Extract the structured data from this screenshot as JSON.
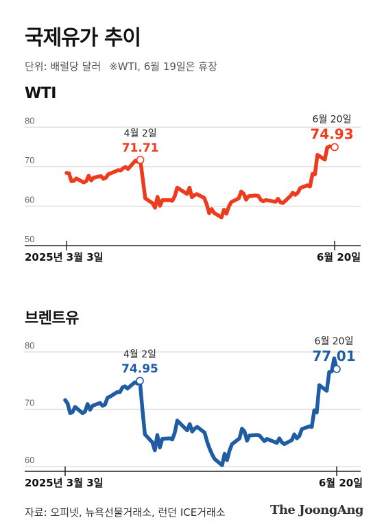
{
  "header": {
    "title": "국제유가 추이",
    "unit": "단위: 배럴당 달러",
    "note": "※WTI, 6월 19일은 휴장"
  },
  "footer": {
    "source": "자료: 오피넷, 뉴욕선물거래소, 런던 ICE거래소",
    "brand": "The JoongAng"
  },
  "colors": {
    "wti": "#ef3b1d",
    "brent": "#1f5ca3",
    "grid": "#cfcfcf",
    "axis": "#222222",
    "tick": "#666666"
  },
  "chart_data": [
    {
      "type": "line",
      "series_label": "WTI",
      "color": "#ef3b1d",
      "yticks": [
        50,
        60,
        70,
        80
      ],
      "ylim": [
        50,
        83
      ],
      "x_range": [
        "2025-03-03",
        "2025-06-20"
      ],
      "x_labels": {
        "start": "2025년 3월 3일",
        "end": "6월 20일"
      },
      "annotations": [
        {
          "date": "2025-04-02",
          "label": "4월 2일",
          "value": "71.71",
          "y": 71.71
        },
        {
          "date": "2025-06-20",
          "label": "6월 20일",
          "value": "74.93",
          "y": 74.93
        }
      ],
      "points": [
        [
          "2025-03-03",
          68.4
        ],
        [
          "2025-03-04",
          68.3
        ],
        [
          "2025-03-05",
          66.3
        ],
        [
          "2025-03-06",
          66.4
        ],
        [
          "2025-03-07",
          67.0
        ],
        [
          "2025-03-10",
          66.0
        ],
        [
          "2025-03-11",
          66.3
        ],
        [
          "2025-03-12",
          67.7
        ],
        [
          "2025-03-13",
          66.5
        ],
        [
          "2025-03-14",
          67.2
        ],
        [
          "2025-03-17",
          67.6
        ],
        [
          "2025-03-18",
          66.9
        ],
        [
          "2025-03-19",
          67.2
        ],
        [
          "2025-03-20",
          68.1
        ],
        [
          "2025-03-21",
          68.3
        ],
        [
          "2025-03-24",
          69.1
        ],
        [
          "2025-03-25",
          69.0
        ],
        [
          "2025-03-26",
          69.6
        ],
        [
          "2025-03-27",
          69.9
        ],
        [
          "2025-03-28",
          69.4
        ],
        [
          "2025-03-31",
          71.5
        ],
        [
          "2025-04-01",
          71.2
        ],
        [
          "2025-04-02",
          71.71
        ],
        [
          "2025-04-03",
          66.9
        ],
        [
          "2025-04-04",
          61.99
        ],
        [
          "2025-04-07",
          60.7
        ],
        [
          "2025-04-08",
          59.58
        ],
        [
          "2025-04-09",
          62.35
        ],
        [
          "2025-04-10",
          60.07
        ],
        [
          "2025-04-11",
          61.5
        ],
        [
          "2025-04-14",
          61.53
        ],
        [
          "2025-04-15",
          61.33
        ],
        [
          "2025-04-16",
          62.47
        ],
        [
          "2025-04-17",
          64.68
        ],
        [
          "2025-04-21",
          63.08
        ],
        [
          "2025-04-22",
          64.67
        ],
        [
          "2025-04-23",
          62.27
        ],
        [
          "2025-04-24",
          62.79
        ],
        [
          "2025-04-25",
          63.02
        ],
        [
          "2025-04-28",
          62.05
        ],
        [
          "2025-04-29",
          60.42
        ],
        [
          "2025-04-30",
          58.21
        ],
        [
          "2025-05-01",
          59.24
        ],
        [
          "2025-05-02",
          58.29
        ],
        [
          "2025-05-05",
          57.13
        ],
        [
          "2025-05-06",
          59.09
        ],
        [
          "2025-05-07",
          58.07
        ],
        [
          "2025-05-08",
          59.91
        ],
        [
          "2025-05-09",
          61.02
        ],
        [
          "2025-05-12",
          61.95
        ],
        [
          "2025-05-13",
          63.67
        ],
        [
          "2025-05-14",
          63.15
        ],
        [
          "2025-05-15",
          61.62
        ],
        [
          "2025-05-16",
          62.49
        ],
        [
          "2025-05-19",
          62.69
        ],
        [
          "2025-05-20",
          62.56
        ],
        [
          "2025-05-21",
          61.57
        ],
        [
          "2025-05-22",
          61.2
        ],
        [
          "2025-05-23",
          61.53
        ],
        [
          "2025-05-27",
          61.1
        ],
        [
          "2025-05-28",
          61.84
        ],
        [
          "2025-05-29",
          60.94
        ],
        [
          "2025-05-30",
          60.79
        ],
        [
          "2025-06-02",
          62.52
        ],
        [
          "2025-06-03",
          63.41
        ],
        [
          "2025-06-04",
          62.85
        ],
        [
          "2025-06-05",
          63.37
        ],
        [
          "2025-06-06",
          64.58
        ],
        [
          "2025-06-09",
          65.29
        ],
        [
          "2025-06-10",
          64.98
        ],
        [
          "2025-06-11",
          68.15
        ],
        [
          "2025-06-12",
          68.04
        ],
        [
          "2025-06-13",
          72.98
        ],
        [
          "2025-06-16",
          71.77
        ],
        [
          "2025-06-17",
          74.84
        ],
        [
          "2025-06-18",
          75.14
        ],
        [
          "2025-06-20",
          74.93
        ]
      ]
    },
    {
      "type": "line",
      "series_label": "브렌트유",
      "color": "#1f5ca3",
      "yticks": [
        60,
        70,
        80
      ],
      "ylim": [
        59.5,
        83
      ],
      "x_range": [
        "2025-03-03",
        "2025-06-20"
      ],
      "x_labels": {
        "start": "2025년 3월 3일",
        "end": "6월 20일"
      },
      "annotations": [
        {
          "date": "2025-04-02",
          "label": "4월 2일",
          "value": "74.95",
          "y": 74.95
        },
        {
          "date": "2025-06-20",
          "label": "6월 20일",
          "value": "77.01",
          "y": 77.01
        }
      ],
      "points": [
        [
          "2025-03-03",
          71.6
        ],
        [
          "2025-03-04",
          71.0
        ],
        [
          "2025-03-05",
          69.3
        ],
        [
          "2025-03-06",
          69.5
        ],
        [
          "2025-03-07",
          70.4
        ],
        [
          "2025-03-10",
          69.3
        ],
        [
          "2025-03-11",
          69.6
        ],
        [
          "2025-03-12",
          70.9
        ],
        [
          "2025-03-13",
          69.9
        ],
        [
          "2025-03-14",
          70.6
        ],
        [
          "2025-03-17",
          71.1
        ],
        [
          "2025-03-18",
          70.6
        ],
        [
          "2025-03-19",
          70.8
        ],
        [
          "2025-03-20",
          72.0
        ],
        [
          "2025-03-21",
          72.2
        ],
        [
          "2025-03-24",
          73.0
        ],
        [
          "2025-03-25",
          73.0
        ],
        [
          "2025-03-26",
          73.8
        ],
        [
          "2025-03-27",
          74.0
        ],
        [
          "2025-03-28",
          73.6
        ],
        [
          "2025-03-31",
          74.7
        ],
        [
          "2025-04-01",
          74.5
        ],
        [
          "2025-04-02",
          74.95
        ],
        [
          "2025-04-03",
          70.1
        ],
        [
          "2025-04-04",
          65.6
        ],
        [
          "2025-04-07",
          64.2
        ],
        [
          "2025-04-08",
          62.8
        ],
        [
          "2025-04-09",
          65.5
        ],
        [
          "2025-04-10",
          63.3
        ],
        [
          "2025-04-11",
          64.8
        ],
        [
          "2025-04-14",
          64.9
        ],
        [
          "2025-04-15",
          64.7
        ],
        [
          "2025-04-16",
          65.9
        ],
        [
          "2025-04-17",
          68.0
        ],
        [
          "2025-04-21",
          66.3
        ],
        [
          "2025-04-22",
          67.4
        ],
        [
          "2025-04-23",
          66.1
        ],
        [
          "2025-04-24",
          66.6
        ],
        [
          "2025-04-25",
          66.9
        ],
        [
          "2025-04-28",
          65.9
        ],
        [
          "2025-04-29",
          64.3
        ],
        [
          "2025-04-30",
          63.1
        ],
        [
          "2025-05-01",
          62.1
        ],
        [
          "2025-05-02",
          61.3
        ],
        [
          "2025-05-05",
          60.2
        ],
        [
          "2025-05-06",
          62.2
        ],
        [
          "2025-05-07",
          61.1
        ],
        [
          "2025-05-08",
          62.8
        ],
        [
          "2025-05-09",
          63.9
        ],
        [
          "2025-05-12",
          64.9
        ],
        [
          "2025-05-13",
          66.6
        ],
        [
          "2025-05-14",
          66.1
        ],
        [
          "2025-05-15",
          64.5
        ],
        [
          "2025-05-16",
          65.4
        ],
        [
          "2025-05-19",
          65.5
        ],
        [
          "2025-05-20",
          65.4
        ],
        [
          "2025-05-21",
          64.9
        ],
        [
          "2025-05-22",
          64.4
        ],
        [
          "2025-05-23",
          64.8
        ],
        [
          "2025-05-27",
          64.1
        ],
        [
          "2025-05-28",
          64.9
        ],
        [
          "2025-05-29",
          64.2
        ],
        [
          "2025-05-30",
          63.9
        ],
        [
          "2025-06-02",
          64.6
        ],
        [
          "2025-06-03",
          65.6
        ],
        [
          "2025-06-04",
          64.9
        ],
        [
          "2025-06-05",
          65.3
        ],
        [
          "2025-06-06",
          66.5
        ],
        [
          "2025-06-09",
          67.0
        ],
        [
          "2025-06-10",
          66.9
        ],
        [
          "2025-06-11",
          69.8
        ],
        [
          "2025-06-12",
          69.4
        ],
        [
          "2025-06-13",
          74.2
        ],
        [
          "2025-06-16",
          73.2
        ],
        [
          "2025-06-17",
          76.5
        ],
        [
          "2025-06-18",
          76.6
        ],
        [
          "2025-06-19",
          78.9
        ],
        [
          "2025-06-20",
          77.01
        ]
      ]
    }
  ]
}
